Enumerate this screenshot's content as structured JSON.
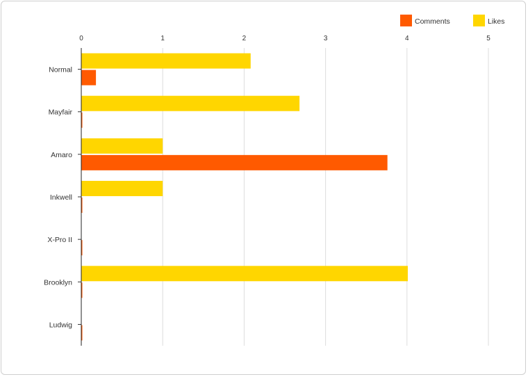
{
  "chart_data": {
    "type": "bar",
    "orientation": "horizontal",
    "categories": [
      "Normal",
      "Mayfair",
      "Amaro",
      "Inkwell",
      "X-Pro II",
      "Brooklyn",
      "Ludwig"
    ],
    "series": [
      {
        "name": "Likes",
        "color": "#FFD600",
        "values": [
          2.08,
          2.68,
          1.0,
          1.0,
          0,
          4.01,
          0
        ]
      },
      {
        "name": "Comments",
        "color": "#FF5A00",
        "values": [
          0.18,
          0,
          3.76,
          0,
          0,
          0,
          0
        ]
      }
    ],
    "xticks": [
      "0",
      "1",
      "2",
      "3",
      "4",
      "5"
    ],
    "xlim": [
      0,
      5
    ],
    "grid": true,
    "legend_position": "top-right",
    "legend": [
      {
        "name": "Comments",
        "color": "#FF5A00"
      },
      {
        "name": "Likes",
        "color": "#FFD600"
      }
    ]
  }
}
